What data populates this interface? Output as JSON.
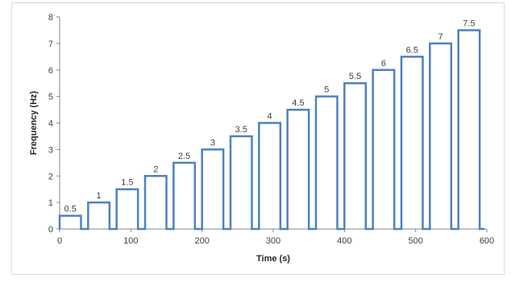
{
  "chart_data": {
    "type": "line",
    "title": "",
    "xlabel": "Time (s)",
    "ylabel": "Frequency (Hz)",
    "xlim": [
      0,
      600
    ],
    "ylim": [
      0,
      8
    ],
    "x_ticks": [
      0,
      100,
      200,
      300,
      400,
      500,
      600
    ],
    "y_ticks": [
      0,
      1,
      2,
      3,
      4,
      5,
      6,
      7,
      8
    ],
    "grid": false,
    "legend": "none",
    "line_color": "#4f81bd",
    "description_units": "Stepped frequency pulses; each pulse is on from start to end (s) at the given level (Hz), returning to 0 between pulses.",
    "pulses": [
      {
        "start": 0,
        "end": 30,
        "level": 0.5,
        "label": "0.5"
      },
      {
        "start": 40,
        "end": 70,
        "level": 1,
        "label": "1"
      },
      {
        "start": 80,
        "end": 110,
        "level": 1.5,
        "label": "1.5"
      },
      {
        "start": 120,
        "end": 150,
        "level": 2,
        "label": "2"
      },
      {
        "start": 160,
        "end": 190,
        "level": 2.5,
        "label": "2.5"
      },
      {
        "start": 200,
        "end": 230,
        "level": 3,
        "label": "3"
      },
      {
        "start": 240,
        "end": 270,
        "level": 3.5,
        "label": "3.5"
      },
      {
        "start": 280,
        "end": 310,
        "level": 4,
        "label": "4"
      },
      {
        "start": 320,
        "end": 350,
        "level": 4.5,
        "label": "4.5"
      },
      {
        "start": 360,
        "end": 390,
        "level": 5,
        "label": "5"
      },
      {
        "start": 400,
        "end": 430,
        "level": 5.5,
        "label": "5.5"
      },
      {
        "start": 440,
        "end": 470,
        "level": 6,
        "label": "6"
      },
      {
        "start": 480,
        "end": 510,
        "level": 6.5,
        "label": "6.5"
      },
      {
        "start": 520,
        "end": 550,
        "level": 7,
        "label": "7"
      },
      {
        "start": 560,
        "end": 590,
        "level": 7.5,
        "label": "7.5"
      }
    ]
  }
}
